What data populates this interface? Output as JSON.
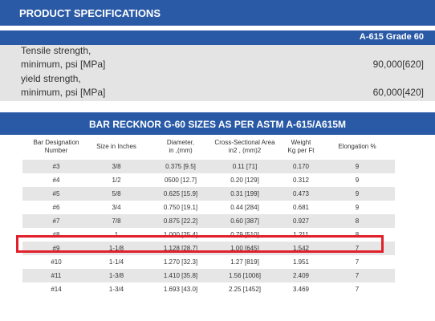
{
  "spec": {
    "title": "PRODUCT SPECIFICATIONS",
    "grade": "A-615 Grade 60",
    "rows": [
      [
        "Tensile strength,",
        "minimum, psi [MPa]",
        "90,000[620]"
      ],
      [
        "yield strength,",
        "minimum, psi [MPa]",
        "60,000[420]"
      ]
    ]
  },
  "table": {
    "title": "BAR RECKNOR G-60 SIZES AS PER ASTM A-615/A615M",
    "headers": [
      [
        "Bar Designation",
        "Number"
      ],
      [
        "Size in Inches"
      ],
      [
        "Diameter,",
        "in ,(mm)"
      ],
      [
        "Cross-Sectional Area",
        "in2 , (mm)2"
      ],
      [
        "Weight",
        "Kg  per Ft"
      ],
      [
        "Elongation %"
      ]
    ],
    "rows": [
      [
        "#3",
        "3/8",
        "0.375 [9.5]",
        "0.11 [71]",
        "0.170",
        "9"
      ],
      [
        "#4",
        "1/2",
        "0500 [12.7]",
        "0.20 [129]",
        "0.312",
        "9"
      ],
      [
        "#5",
        "5/8",
        "0.625 [15.9]",
        "0.31 [199]",
        "0.473",
        "9"
      ],
      [
        "#6",
        "3/4",
        "0.750 [19.1]",
        "0.44 [284]",
        "0.681",
        "9"
      ],
      [
        "#7",
        "7/8",
        "0.875 [22.2]",
        "0.60 [387]",
        "0.927",
        "8"
      ],
      [
        "#8",
        "1",
        "1.000 [25.4]",
        "0.79 [510]",
        "1.211",
        "8"
      ],
      [
        "#9",
        "1-1/8",
        "1.128 [28.7]",
        "1.00 [645]",
        "1.542",
        "7"
      ],
      [
        "#10",
        "1-1/4",
        "1.270 [32.3]",
        "1.27 [819]",
        "1.951",
        "7"
      ],
      [
        "#11",
        "1-3/8",
        "1.410 [35.8]",
        "1.56 [1006]",
        "2.409",
        "7"
      ],
      [
        "#14",
        "1-3/4",
        "1.693 [43.0]",
        "2.25 [1452]",
        "3.469",
        "7"
      ]
    ]
  }
}
